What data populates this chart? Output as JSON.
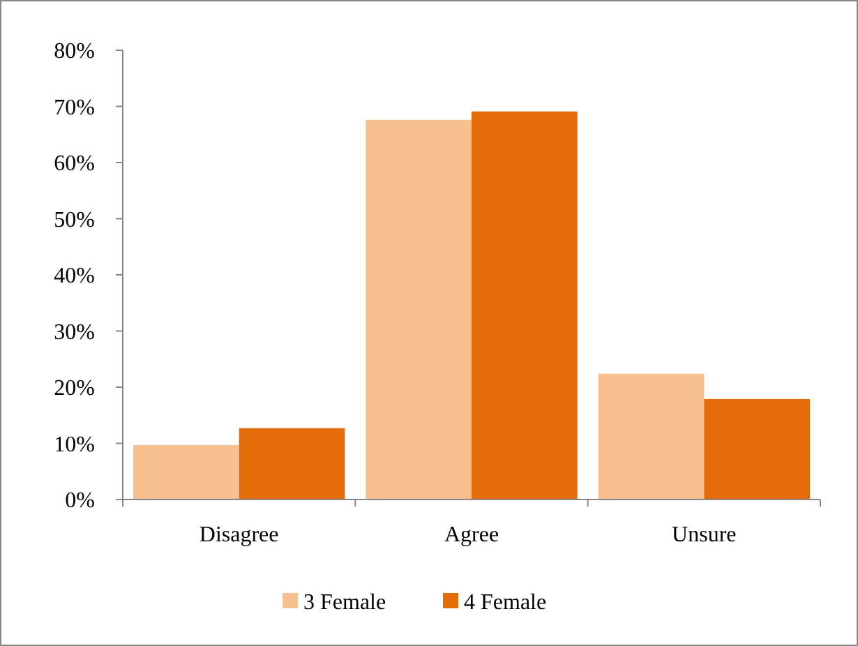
{
  "chart_data": {
    "type": "bar",
    "categories": [
      "Disagree",
      "Agree",
      "Unsure"
    ],
    "series": [
      {
        "name": "3 Female",
        "color": "#f9c08f",
        "values": [
          9.7,
          67.6,
          22.4
        ]
      },
      {
        "name": "4 Female",
        "color": "#e46c0a",
        "values": [
          12.7,
          69.1,
          17.9
        ]
      }
    ],
    "ylim": [
      0,
      80
    ],
    "yticks": [
      {
        "value": 0,
        "label": "0%"
      },
      {
        "value": 10,
        "label": "10%"
      },
      {
        "value": 20,
        "label": "20%"
      },
      {
        "value": 30,
        "label": "30%"
      },
      {
        "value": 40,
        "label": "40%"
      },
      {
        "value": 50,
        "label": "50%"
      },
      {
        "value": 60,
        "label": "60%"
      },
      {
        "value": 70,
        "label": "70%"
      },
      {
        "value": 80,
        "label": "80%"
      }
    ],
    "grid": false,
    "legend": "bottom"
  }
}
